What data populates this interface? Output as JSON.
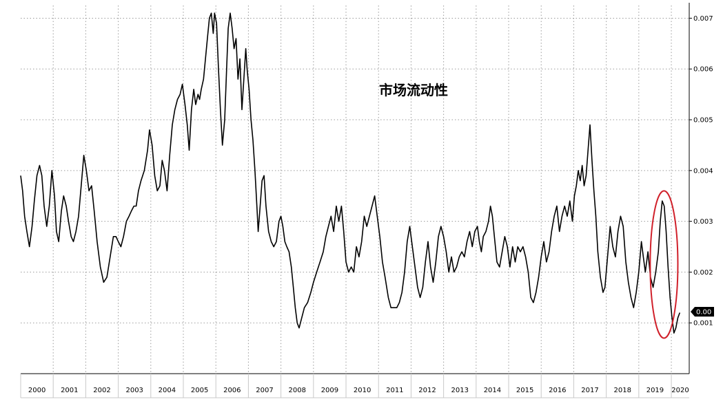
{
  "chart_data": {
    "type": "line",
    "title": "市场流动性",
    "xlabel": "",
    "ylabel": "",
    "xlim": [
      2000.0,
      2020.55
    ],
    "ylim": [
      0.0,
      0.00725
    ],
    "grid": true,
    "y_axis_side": "right",
    "x_ticks": [
      "2000",
      "2001",
      "2002",
      "2003",
      "2004",
      "2005",
      "2006",
      "2007",
      "2008",
      "2009",
      "2010",
      "2011",
      "2012",
      "2013",
      "2014",
      "2015",
      "2016",
      "2017",
      "2018",
      "2019",
      "2020"
    ],
    "y_ticks": [
      {
        "value": 0.001,
        "label": "0.001"
      },
      {
        "value": 0.002,
        "label": "0.002"
      },
      {
        "value": 0.003,
        "label": "0.003"
      },
      {
        "value": 0.004,
        "label": "0.004"
      },
      {
        "value": 0.005,
        "label": "0.005"
      },
      {
        "value": 0.006,
        "label": "0.006"
      },
      {
        "value": 0.007,
        "label": "0.007"
      }
    ],
    "last_value_label": "0.00",
    "last_value": 0.00122,
    "line_color": "#000000",
    "highlight": {
      "shape": "ellipse",
      "color": "#d0202a",
      "x_range": [
        2019.35,
        2020.2
      ],
      "y_range": [
        0.0007,
        0.0036
      ]
    },
    "series": [
      {
        "values": [
          [
            2000.0,
            0.0039
          ],
          [
            2000.06,
            0.0036
          ],
          [
            2000.12,
            0.0031
          ],
          [
            2000.19,
            0.0028
          ],
          [
            2000.27,
            0.0025
          ],
          [
            2000.35,
            0.0029
          ],
          [
            2000.42,
            0.0034
          ],
          [
            2000.5,
            0.0039
          ],
          [
            2000.58,
            0.0041
          ],
          [
            2000.65,
            0.0039
          ],
          [
            2000.72,
            0.0033
          ],
          [
            2000.8,
            0.0029
          ],
          [
            2000.88,
            0.0033
          ],
          [
            2000.96,
            0.004
          ],
          [
            2001.04,
            0.0035
          ],
          [
            2001.1,
            0.0028
          ],
          [
            2001.17,
            0.0026
          ],
          [
            2001.25,
            0.0032
          ],
          [
            2001.32,
            0.0035
          ],
          [
            2001.4,
            0.0033
          ],
          [
            2001.47,
            0.003
          ],
          [
            2001.55,
            0.0027
          ],
          [
            2001.62,
            0.0026
          ],
          [
            2001.7,
            0.0028
          ],
          [
            2001.78,
            0.0031
          ],
          [
            2001.86,
            0.0037
          ],
          [
            2001.94,
            0.0043
          ],
          [
            2002.02,
            0.004
          ],
          [
            2002.1,
            0.0036
          ],
          [
            2002.18,
            0.0037
          ],
          [
            2002.26,
            0.0032
          ],
          [
            2002.35,
            0.0026
          ],
          [
            2002.45,
            0.0021
          ],
          [
            2002.55,
            0.0018
          ],
          [
            2002.65,
            0.0019
          ],
          [
            2002.75,
            0.0023
          ],
          [
            2002.85,
            0.0027
          ],
          [
            2002.93,
            0.0027
          ],
          [
            2003.0,
            0.0026
          ],
          [
            2003.08,
            0.0025
          ],
          [
            2003.16,
            0.0027
          ],
          [
            2003.25,
            0.003
          ],
          [
            2003.33,
            0.0031
          ],
          [
            2003.4,
            0.0032
          ],
          [
            2003.48,
            0.0033
          ],
          [
            2003.55,
            0.0033
          ],
          [
            2003.62,
            0.0036
          ],
          [
            2003.7,
            0.0038
          ],
          [
            2003.8,
            0.004
          ],
          [
            2003.9,
            0.0044
          ],
          [
            2003.96,
            0.0048
          ],
          [
            2004.04,
            0.0045
          ],
          [
            2004.12,
            0.0039
          ],
          [
            2004.2,
            0.0036
          ],
          [
            2004.28,
            0.0037
          ],
          [
            2004.35,
            0.0042
          ],
          [
            2004.42,
            0.004
          ],
          [
            2004.5,
            0.0036
          ],
          [
            2004.58,
            0.0043
          ],
          [
            2004.66,
            0.0049
          ],
          [
            2004.74,
            0.0052
          ],
          [
            2004.82,
            0.0054
          ],
          [
            2004.9,
            0.0055
          ],
          [
            2004.97,
            0.0057
          ],
          [
            2005.05,
            0.0053
          ],
          [
            2005.12,
            0.0049
          ],
          [
            2005.18,
            0.0044
          ],
          [
            2005.25,
            0.0052
          ],
          [
            2005.32,
            0.0056
          ],
          [
            2005.38,
            0.0053
          ],
          [
            2005.45,
            0.0055
          ],
          [
            2005.5,
            0.0054
          ],
          [
            2005.55,
            0.0056
          ],
          [
            2005.62,
            0.0058
          ],
          [
            2005.68,
            0.0062
          ],
          [
            2005.74,
            0.0066
          ],
          [
            2005.8,
            0.007
          ],
          [
            2005.86,
            0.0071
          ],
          [
            2005.92,
            0.0067
          ],
          [
            2005.96,
            0.0071
          ],
          [
            2006.02,
            0.0069
          ],
          [
            2006.08,
            0.006
          ],
          [
            2006.14,
            0.0052
          ],
          [
            2006.2,
            0.0045
          ],
          [
            2006.27,
            0.005
          ],
          [
            2006.33,
            0.006
          ],
          [
            2006.38,
            0.0068
          ],
          [
            2006.44,
            0.0071
          ],
          [
            2006.5,
            0.0068
          ],
          [
            2006.56,
            0.0064
          ],
          [
            2006.62,
            0.0066
          ],
          [
            2006.68,
            0.0058
          ],
          [
            2006.74,
            0.0062
          ],
          [
            2006.8,
            0.0052
          ],
          [
            2006.86,
            0.0058
          ],
          [
            2006.92,
            0.0064
          ],
          [
            2006.96,
            0.006
          ],
          [
            2007.02,
            0.0056
          ],
          [
            2007.08,
            0.005
          ],
          [
            2007.14,
            0.0046
          ],
          [
            2007.2,
            0.004
          ],
          [
            2007.26,
            0.0033
          ],
          [
            2007.3,
            0.0028
          ],
          [
            2007.35,
            0.0032
          ],
          [
            2007.42,
            0.0038
          ],
          [
            2007.48,
            0.0039
          ],
          [
            2007.54,
            0.0033
          ],
          [
            2007.62,
            0.0028
          ],
          [
            2007.7,
            0.0026
          ],
          [
            2007.78,
            0.0025
          ],
          [
            2007.86,
            0.0026
          ],
          [
            2007.94,
            0.003
          ],
          [
            2008.0,
            0.0031
          ],
          [
            2008.06,
            0.0029
          ],
          [
            2008.12,
            0.0026
          ],
          [
            2008.18,
            0.0025
          ],
          [
            2008.25,
            0.0024
          ],
          [
            2008.32,
            0.0021
          ],
          [
            2008.38,
            0.0017
          ],
          [
            2008.44,
            0.0013
          ],
          [
            2008.5,
            0.001
          ],
          [
            2008.56,
            0.0009
          ],
          [
            2008.64,
            0.0011
          ],
          [
            2008.72,
            0.0013
          ],
          [
            2008.82,
            0.0014
          ],
          [
            2008.92,
            0.0016
          ],
          [
            2009.0,
            0.0018
          ],
          [
            2009.1,
            0.002
          ],
          [
            2009.2,
            0.0022
          ],
          [
            2009.3,
            0.0024
          ],
          [
            2009.38,
            0.0027
          ],
          [
            2009.46,
            0.0029
          ],
          [
            2009.54,
            0.0031
          ],
          [
            2009.62,
            0.0028
          ],
          [
            2009.7,
            0.0033
          ],
          [
            2009.78,
            0.003
          ],
          [
            2009.86,
            0.0033
          ],
          [
            2009.93,
            0.0028
          ],
          [
            2010.0,
            0.0022
          ],
          [
            2010.08,
            0.002
          ],
          [
            2010.16,
            0.0021
          ],
          [
            2010.24,
            0.002
          ],
          [
            2010.32,
            0.0025
          ],
          [
            2010.4,
            0.0023
          ],
          [
            2010.48,
            0.0026
          ],
          [
            2010.56,
            0.0031
          ],
          [
            2010.64,
            0.0029
          ],
          [
            2010.72,
            0.0031
          ],
          [
            2010.8,
            0.0033
          ],
          [
            2010.88,
            0.0035
          ],
          [
            2010.96,
            0.0031
          ],
          [
            2011.04,
            0.0027
          ],
          [
            2011.12,
            0.0022
          ],
          [
            2011.2,
            0.0019
          ],
          [
            2011.3,
            0.0015
          ],
          [
            2011.38,
            0.0013
          ],
          [
            2011.46,
            0.0013
          ],
          [
            2011.56,
            0.0013
          ],
          [
            2011.64,
            0.0014
          ],
          [
            2011.72,
            0.0016
          ],
          [
            2011.8,
            0.002
          ],
          [
            2011.88,
            0.0026
          ],
          [
            2011.96,
            0.0029
          ],
          [
            2012.04,
            0.0025
          ],
          [
            2012.12,
            0.0021
          ],
          [
            2012.2,
            0.0017
          ],
          [
            2012.28,
            0.0015
          ],
          [
            2012.36,
            0.0017
          ],
          [
            2012.44,
            0.0022
          ],
          [
            2012.52,
            0.0026
          ],
          [
            2012.6,
            0.0021
          ],
          [
            2012.68,
            0.0018
          ],
          [
            2012.76,
            0.0022
          ],
          [
            2012.84,
            0.0027
          ],
          [
            2012.92,
            0.0029
          ],
          [
            2013.0,
            0.0027
          ],
          [
            2013.08,
            0.0024
          ],
          [
            2013.16,
            0.002
          ],
          [
            2013.24,
            0.0023
          ],
          [
            2013.32,
            0.002
          ],
          [
            2013.4,
            0.0021
          ],
          [
            2013.48,
            0.0023
          ],
          [
            2013.56,
            0.0024
          ],
          [
            2013.64,
            0.0023
          ],
          [
            2013.72,
            0.0026
          ],
          [
            2013.8,
            0.0028
          ],
          [
            2013.88,
            0.0025
          ],
          [
            2013.96,
            0.0028
          ],
          [
            2014.04,
            0.0029
          ],
          [
            2014.1,
            0.0026
          ],
          [
            2014.16,
            0.0024
          ],
          [
            2014.22,
            0.0027
          ],
          [
            2014.3,
            0.0028
          ],
          [
            2014.38,
            0.003
          ],
          [
            2014.44,
            0.0033
          ],
          [
            2014.5,
            0.0031
          ],
          [
            2014.56,
            0.0027
          ],
          [
            2014.64,
            0.0022
          ],
          [
            2014.72,
            0.0021
          ],
          [
            2014.8,
            0.0024
          ],
          [
            2014.88,
            0.0027
          ],
          [
            2014.96,
            0.0025
          ],
          [
            2015.04,
            0.0021
          ],
          [
            2015.12,
            0.0025
          ],
          [
            2015.2,
            0.0022
          ],
          [
            2015.28,
            0.0025
          ],
          [
            2015.36,
            0.0024
          ],
          [
            2015.44,
            0.0025
          ],
          [
            2015.52,
            0.0023
          ],
          [
            2015.6,
            0.002
          ],
          [
            2015.68,
            0.0015
          ],
          [
            2015.76,
            0.0014
          ],
          [
            2015.84,
            0.0016
          ],
          [
            2015.92,
            0.0019
          ],
          [
            2016.0,
            0.0023
          ],
          [
            2016.08,
            0.0026
          ],
          [
            2016.16,
            0.0022
          ],
          [
            2016.24,
            0.0024
          ],
          [
            2016.32,
            0.0028
          ],
          [
            2016.4,
            0.0031
          ],
          [
            2016.48,
            0.0033
          ],
          [
            2016.56,
            0.0028
          ],
          [
            2016.64,
            0.0031
          ],
          [
            2016.72,
            0.0033
          ],
          [
            2016.8,
            0.0031
          ],
          [
            2016.88,
            0.0034
          ],
          [
            2016.96,
            0.003
          ],
          [
            2017.02,
            0.0035
          ],
          [
            2017.08,
            0.0037
          ],
          [
            2017.14,
            0.004
          ],
          [
            2017.2,
            0.0038
          ],
          [
            2017.26,
            0.0041
          ],
          [
            2017.32,
            0.0037
          ],
          [
            2017.38,
            0.0039
          ],
          [
            2017.44,
            0.0044
          ],
          [
            2017.5,
            0.0049
          ],
          [
            2017.56,
            0.0042
          ],
          [
            2017.62,
            0.0036
          ],
          [
            2017.68,
            0.0031
          ],
          [
            2017.74,
            0.0024
          ],
          [
            2017.82,
            0.0019
          ],
          [
            2017.9,
            0.0016
          ],
          [
            2017.96,
            0.0017
          ],
          [
            2018.04,
            0.0023
          ],
          [
            2018.12,
            0.0029
          ],
          [
            2018.2,
            0.0025
          ],
          [
            2018.28,
            0.0023
          ],
          [
            2018.36,
            0.0028
          ],
          [
            2018.44,
            0.0031
          ],
          [
            2018.52,
            0.0029
          ],
          [
            2018.6,
            0.0022
          ],
          [
            2018.68,
            0.0018
          ],
          [
            2018.76,
            0.0015
          ],
          [
            2018.84,
            0.0013
          ],
          [
            2018.92,
            0.0016
          ],
          [
            2019.0,
            0.002
          ],
          [
            2019.08,
            0.0026
          ],
          [
            2019.14,
            0.0023
          ],
          [
            2019.2,
            0.002
          ],
          [
            2019.28,
            0.0024
          ],
          [
            2019.36,
            0.0019
          ],
          [
            2019.44,
            0.0017
          ],
          [
            2019.52,
            0.002
          ],
          [
            2019.6,
            0.0024
          ],
          [
            2019.66,
            0.003
          ],
          [
            2019.72,
            0.0034
          ],
          [
            2019.78,
            0.0033
          ],
          [
            2019.84,
            0.0028
          ],
          [
            2019.9,
            0.0021
          ],
          [
            2019.96,
            0.0015
          ],
          [
            2020.02,
            0.0011
          ],
          [
            2020.08,
            0.0008
          ],
          [
            2020.14,
            0.0009
          ],
          [
            2020.2,
            0.0011
          ],
          [
            2020.26,
            0.0012
          ]
        ]
      }
    ]
  }
}
